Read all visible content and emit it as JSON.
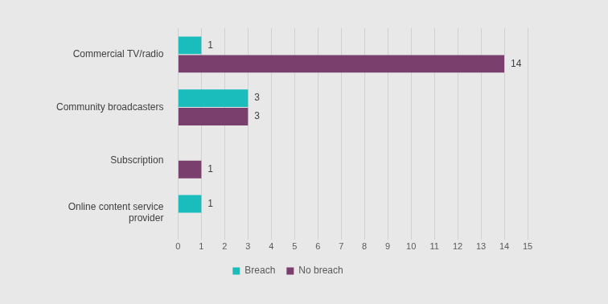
{
  "chart_data": {
    "type": "bar",
    "orientation": "horizontal",
    "categories": [
      "Commercial TV/radio",
      "Community broadcasters",
      "Subscription",
      "Online content service provider"
    ],
    "series": [
      {
        "name": "Breach",
        "color": "#1bbcbc",
        "values": [
          1,
          3,
          null,
          1
        ]
      },
      {
        "name": "No breach",
        "color": "#7b3f6e",
        "values": [
          14,
          3,
          1,
          null
        ]
      }
    ],
    "xlim": [
      0,
      15
    ],
    "xticks": [
      0,
      1,
      2,
      3,
      4,
      5,
      6,
      7,
      8,
      9,
      10,
      11,
      12,
      13,
      14,
      15
    ],
    "grid": true,
    "legend": "bottom",
    "data_labels": true
  }
}
